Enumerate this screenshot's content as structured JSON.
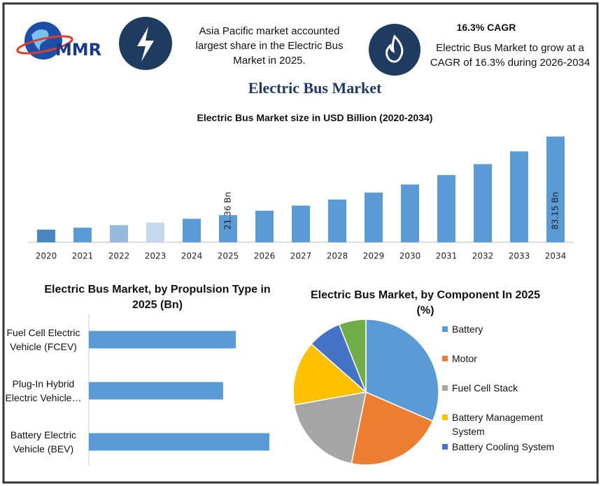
{
  "header": {
    "logo": "MMR",
    "info1": "Asia Pacific market accounted largest share in the Electric Bus Market in 2025.",
    "info2_title": "16.3% CAGR",
    "info2": "Electric Bus Market to grow at a CAGR of 16.3% during 2026-2034",
    "title": "Electric Bus Market"
  },
  "chart_data": [
    {
      "type": "bar",
      "title": "Electric Bus Market size in USD Billion (2020-2034)",
      "categories": [
        "2020",
        "2021",
        "2022",
        "2023",
        "2024",
        "2025",
        "2026",
        "2027",
        "2028",
        "2029",
        "2030",
        "2031",
        "2032",
        "2033",
        "2034"
      ],
      "values": [
        10,
        11.5,
        13.5,
        15.5,
        18.5,
        21.36,
        24.84,
        28.89,
        33.6,
        39.08,
        45.45,
        52.85,
        61.47,
        71.49,
        83.15
      ],
      "value_labels": [
        null,
        null,
        null,
        null,
        null,
        "21.36 Bn",
        null,
        null,
        null,
        null,
        null,
        null,
        null,
        null,
        "83.15 Bn"
      ],
      "colors": [
        "#4a86c0",
        "#5b9bd5",
        "#97b9e0",
        "#c5d8ee",
        "#5b9bd5",
        "#5b9bd5",
        "#5b9bd5",
        "#5b9bd5",
        "#5b9bd5",
        "#5b9bd5",
        "#5b9bd5",
        "#5b9bd5",
        "#5b9bd5",
        "#5b9bd5",
        "#5b9bd5"
      ]
    },
    {
      "type": "hbar",
      "title": "Electric Bus Market, by Propulsion Type in 2025 (Bn)",
      "categories": [
        "Fuel Cell Electric Vehicle (FCEV)",
        "Plug-In Hybrid Electric Vehicle…",
        "Battery Electric Vehicle (BEV)"
      ],
      "values": [
        6.8,
        6.21,
        8.35
      ],
      "color": "#5b9bd5"
    },
    {
      "type": "pie",
      "title": "Electric Bus Market, by Component In 2025 (%)",
      "categories": [
        "Battery",
        "Motor",
        "Fuel Cell Stack",
        "Battery Management System",
        "Battery Cooling System",
        null
      ],
      "values": [
        31.5,
        21.7,
        19,
        14.3,
        7.5,
        6
      ],
      "colors": [
        "#5b9bd5",
        "#ed7d31",
        "#a5a5a5",
        "#ffc000",
        "#4472c4",
        "#70ad47"
      ],
      "legend": "right"
    }
  ]
}
